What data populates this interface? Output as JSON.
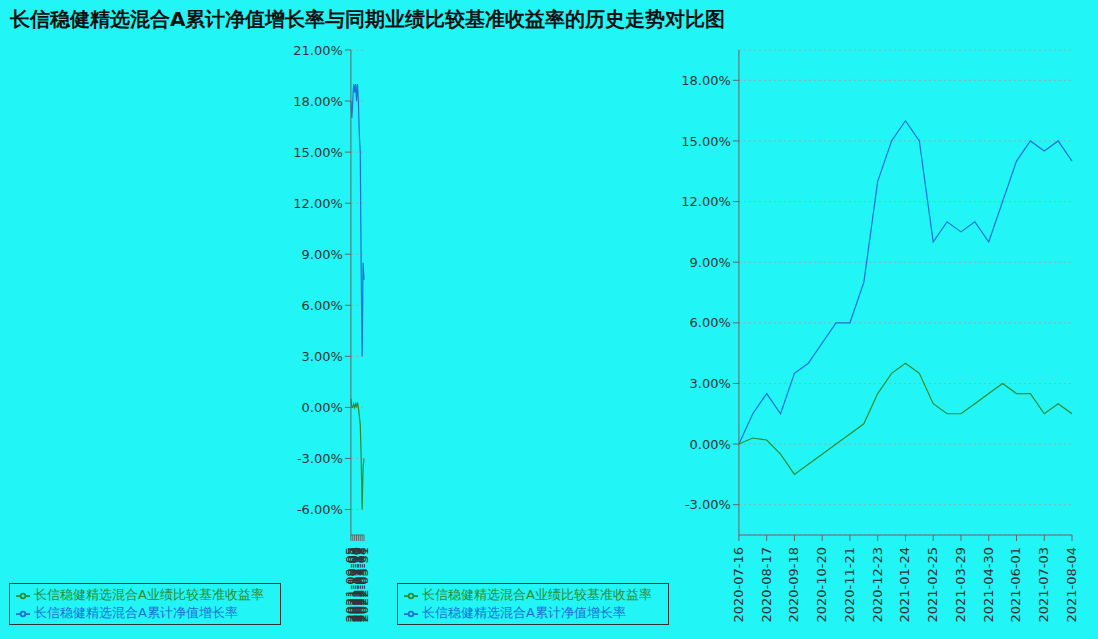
{
  "chart_data": [
    {
      "type": "line",
      "title": "长信稳健精选混合A累计净值增长率与同期业绩比较基准收益率的历史走势对比图",
      "x": [
        "2021-09-05",
        "2021-09-21",
        "2021-10-07",
        "2021-10-23",
        "2021-11-08",
        "2021-11-24",
        "2021-12-10",
        "2021-12-26",
        "2022-01-11",
        "2022-01-27",
        "2022-02-12",
        "2022-02-26",
        "2022-03-08",
        "2022-03-20",
        "2022-03-31"
      ],
      "xticks": [
        "2021-09-05",
        "2021-10-07",
        "2021-11-08",
        "2021-12-10",
        "2022-01-11",
        "2022-02-12",
        "2022-03-08",
        "2022-03-31"
      ],
      "ylim": [
        -7.5,
        21
      ],
      "yticks": [
        {
          "value": -6,
          "label": "-6.00%"
        },
        {
          "value": -3,
          "label": "-3.00%"
        },
        {
          "value": 0,
          "label": "0.00%"
        },
        {
          "value": 3,
          "label": "3.00%"
        },
        {
          "value": 6,
          "label": "6.00%"
        },
        {
          "value": 9,
          "label": "9.00%"
        },
        {
          "value": 12,
          "label": "12.00%"
        },
        {
          "value": 15,
          "label": "15.00%"
        },
        {
          "value": 18,
          "label": "18.00%"
        },
        {
          "value": 21,
          "label": "21.00%"
        }
      ],
      "grid": true,
      "legend": "bottom",
      "marker": "none",
      "line_style": "solid",
      "series": [
        {
          "name": "长信稳健精选混合A累计净值增长率",
          "color": "#1f6fd6",
          "values": [
            18,
            17,
            18,
            19,
            18.5,
            19,
            18,
            19,
            18,
            16,
            15,
            8,
            3,
            8.5,
            7.5
          ]
        },
        {
          "name": "长信稳健精选混合A业绩比较基准收益率",
          "color": "#2e8b2e",
          "values": [
            0.5,
            0,
            0,
            0.2,
            0,
            0.2,
            0,
            0.3,
            0,
            -0.5,
            -1,
            -3,
            -6,
            -3.5,
            -3
          ]
        }
      ]
    },
    {
      "type": "line",
      "x": [
        "2020-07-16",
        "2020-08-01",
        "2020-08-17",
        "2020-09-02",
        "2020-09-18",
        "2020-10-04",
        "2020-10-20",
        "2020-11-05",
        "2020-11-21",
        "2020-12-07",
        "2020-12-23",
        "2021-01-08",
        "2021-01-24",
        "2021-02-09",
        "2021-02-25",
        "2021-03-13",
        "2021-03-29",
        "2021-04-14",
        "2021-04-30",
        "2021-05-16",
        "2021-06-01",
        "2021-06-17",
        "2021-07-03",
        "2021-07-19",
        "2021-08-04"
      ],
      "xticks": [
        "2020-07-16",
        "2020-08-17",
        "2020-09-18",
        "2020-10-20",
        "2020-11-21",
        "2020-12-23",
        "2021-01-24",
        "2021-02-25",
        "2021-03-29",
        "2021-04-30",
        "2021-06-01",
        "2021-07-03",
        "2021-08-04"
      ],
      "ylim": [
        -4.5,
        19.5
      ],
      "yticks": [
        {
          "value": -3,
          "label": "-3.00%"
        },
        {
          "value": 0,
          "label": "0.00%"
        },
        {
          "value": 3,
          "label": "3.00%"
        },
        {
          "value": 6,
          "label": "6.00%"
        },
        {
          "value": 9,
          "label": "9.00%"
        },
        {
          "value": 12,
          "label": "12.00%"
        },
        {
          "value": 15,
          "label": "15.00%"
        },
        {
          "value": 18,
          "label": "18.00%"
        }
      ],
      "grid": true,
      "legend": "bottom",
      "marker": "none",
      "line_style": "solid",
      "series": [
        {
          "name": "长信稳健精选混合A累计净值增长率",
          "color": "#1f6fd6",
          "values": [
            0,
            1.5,
            2.5,
            1.5,
            3.5,
            4,
            5,
            6,
            6,
            8,
            13,
            15,
            16,
            15,
            10,
            11,
            10.5,
            11,
            10,
            12,
            14,
            15,
            14.5,
            15,
            14
          ]
        },
        {
          "name": "长信稳健精选混合A业绩比较基准收益率",
          "color": "#2e8b2e",
          "values": [
            0,
            0.3,
            0.2,
            -0.5,
            -1.5,
            -1,
            -0.5,
            0,
            0.5,
            1,
            2.5,
            3.5,
            4,
            3.5,
            2,
            1.5,
            1.5,
            2,
            2.5,
            3,
            2.5,
            2.5,
            1.5,
            2,
            1.5
          ]
        }
      ]
    }
  ]
}
